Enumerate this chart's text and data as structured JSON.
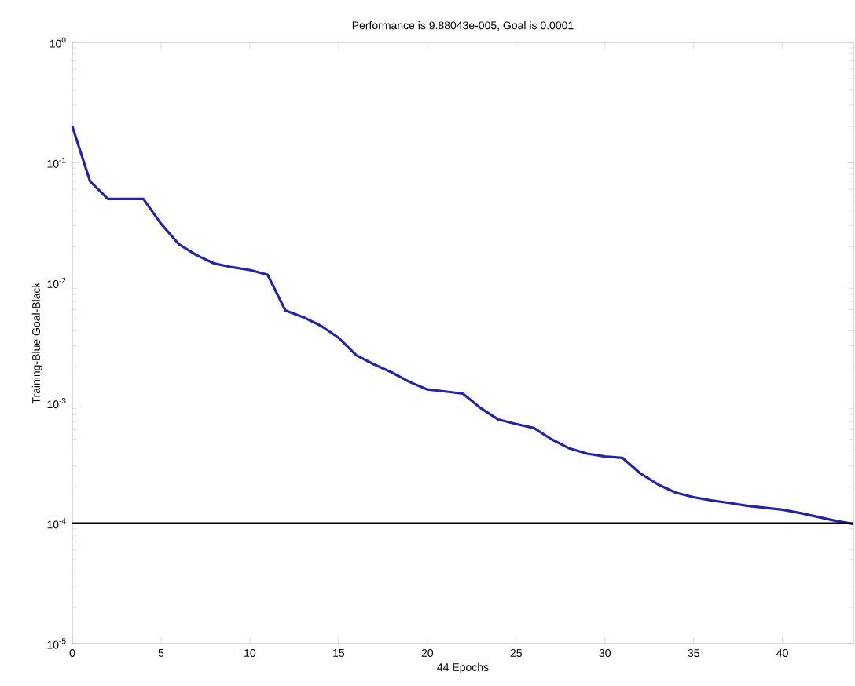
{
  "chart_data": {
    "type": "line",
    "title": "Performance is 9.88043e-005, Goal is 0.0001",
    "xlabel": "44 Epochs",
    "ylabel": "Training-Blue  Goal-Black",
    "x": [
      0,
      1,
      2,
      3,
      4,
      5,
      6,
      7,
      8,
      9,
      10,
      11,
      12,
      13,
      14,
      15,
      16,
      17,
      18,
      19,
      20,
      21,
      22,
      23,
      24,
      25,
      26,
      27,
      28,
      29,
      30,
      31,
      32,
      33,
      34,
      35,
      36,
      37,
      38,
      39,
      40,
      41,
      42,
      43,
      44
    ],
    "series": [
      {
        "color": "#2424a8",
        "values": [
          0.2,
          0.07,
          0.05,
          0.05,
          0.05,
          0.031,
          0.021,
          0.017,
          0.0145,
          0.0135,
          0.0128,
          0.0117,
          0.0059,
          0.0052,
          0.0044,
          0.0035,
          0.0025,
          0.0021,
          0.0018,
          0.0015,
          0.0013,
          0.00125,
          0.0012,
          0.00091,
          0.00073,
          0.00067,
          0.00062,
          0.0005,
          0.00042,
          0.00038,
          0.00036,
          0.00035,
          0.00026,
          0.00021,
          0.00018,
          0.000165,
          0.000155,
          0.000148,
          0.00014,
          0.000135,
          0.00013,
          0.000122,
          0.000113,
          0.000105,
          9.88e-05
        ]
      }
    ],
    "ref_lines": [
      {
        "axis": "y",
        "value": 0.0001,
        "color": "#000000"
      }
    ],
    "log": "y",
    "grid": false,
    "legend": false,
    "marker": "none",
    "line_style": "solid",
    "xlim": [
      0,
      44
    ],
    "xticks": [
      0,
      5,
      10,
      15,
      20,
      25,
      30,
      35,
      40
    ],
    "ylim": [
      1e-05,
      1
    ],
    "yticks": [
      {
        "value": 1e-05,
        "label": "10$^{-5}$"
      },
      {
        "value": 0.0001,
        "label": "10$^{-4}$"
      },
      {
        "value": 0.001,
        "label": "10$^{-3}$"
      },
      {
        "value": 0.01,
        "label": "10$^{-2}$"
      },
      {
        "value": 0.1,
        "label": "10$^{-1}$"
      },
      {
        "value": 1,
        "label": "10$^{0}$"
      }
    ]
  }
}
